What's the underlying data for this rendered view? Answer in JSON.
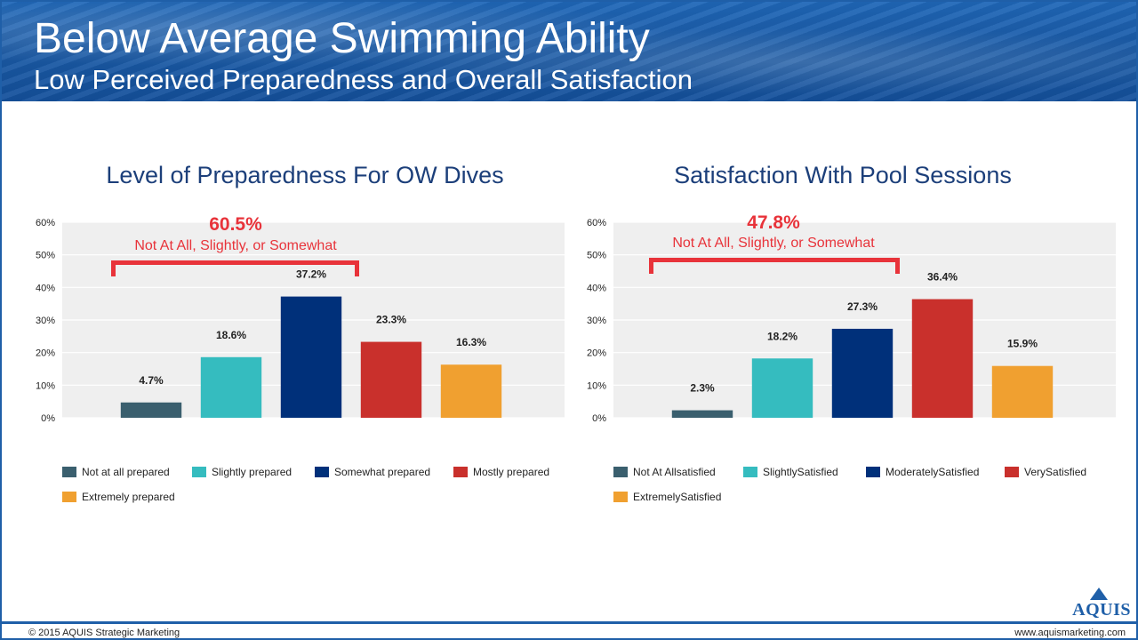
{
  "slide": {
    "title": "Below Average Swimming Ability",
    "subtitle": "Low Perceived Preparedness and Overall Satisfaction"
  },
  "charts": {
    "left": {
      "title": "Level of Preparedness For OW Dives",
      "callout_value": "60.5%",
      "callout_text": "Not At All, Slightly, or Somewhat"
    },
    "right": {
      "title": "Satisfaction With Pool Sessions",
      "callout_value": "47.8%",
      "callout_text": "Not At All, Slightly, or Somewhat"
    }
  },
  "chart_data": [
    {
      "type": "bar",
      "title": "Level of Preparedness For OW Dives",
      "categories": [
        "Not at all prepared",
        "Slightly prepared",
        "Somewhat prepared",
        "Mostly prepared",
        "Extremely prepared"
      ],
      "values": [
        4.7,
        18.6,
        37.2,
        23.3,
        16.3
      ],
      "value_labels": [
        "4.7%",
        "18.6%",
        "37.2%",
        "23.3%",
        "16.3%"
      ],
      "colors": [
        "#3a5f6e",
        "#35bcbf",
        "#00307a",
        "#c9302c",
        "#f0a030"
      ],
      "yticks": [
        "0%",
        "10%",
        "20%",
        "30%",
        "40%",
        "50%",
        "60%"
      ],
      "ylim": [
        0,
        60
      ],
      "grid": true,
      "legend": "bottom"
    },
    {
      "type": "bar",
      "title": "Satisfaction With Pool Sessions",
      "categories": [
        "Not At Allsatisfied",
        "SlightlySatisfied",
        "ModeratelySatisfied",
        "VerySatisfied",
        "ExtremelySatisfied"
      ],
      "values": [
        2.3,
        18.2,
        27.3,
        36.4,
        15.9
      ],
      "value_labels": [
        "2.3%",
        "18.2%",
        "27.3%",
        "36.4%",
        "15.9%"
      ],
      "colors": [
        "#3a5f6e",
        "#35bcbf",
        "#00307a",
        "#c9302c",
        "#f0a030"
      ],
      "yticks": [
        "0%",
        "10%",
        "20%",
        "30%",
        "40%",
        "50%",
        "60%"
      ],
      "ylim": [
        0,
        60
      ],
      "grid": true,
      "legend": "bottom"
    }
  ],
  "footer": {
    "copyright": "© 2015 AQUIS Strategic Marketing",
    "website": "www.aquismarketing.com",
    "logo_text": "AQUIS"
  }
}
